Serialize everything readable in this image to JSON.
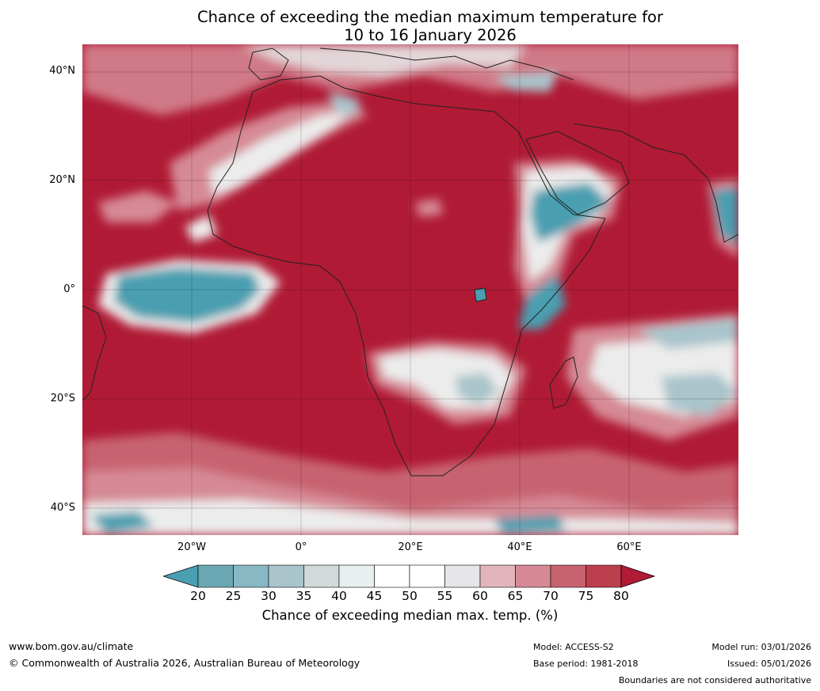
{
  "title_line1": "Chance of exceeding the median maximum temperature for",
  "title_line2": "10 to 16 January 2026",
  "lat_labels": [
    "40°N",
    "20°N",
    "0°",
    "20°S",
    "40°S"
  ],
  "lon_labels": [
    "20°W",
    "0°",
    "20°E",
    "40°E",
    "60°E"
  ],
  "colorbar": {
    "ticks": [
      "20",
      "25",
      "30",
      "35",
      "40",
      "45",
      "50",
      "55",
      "60",
      "65",
      "70",
      "75",
      "80"
    ],
    "colors": [
      "#4a9fb0",
      "#6aa7b3",
      "#88b8c3",
      "#a9c4cb",
      "#d3d8db",
      "#e9eef1",
      "#ffffff",
      "#ffffff",
      "#e6e6e8",
      "#e2b5bc",
      "#d68a95",
      "#c7636f",
      "#bc3f4d",
      "#b01a35"
    ],
    "label": "Chance of exceeding median max. temp. (%)"
  },
  "palette": {
    "ocean_high": "#b01a35",
    "warm_light": "#d68a95",
    "warm_mid": "#c7636f",
    "neutral": "#ececec",
    "cool_light": "#a9c4cb",
    "cool": "#4a9fb0"
  },
  "footer": {
    "url": "www.bom.gov.au/climate",
    "copyright": "© Commonwealth of Australia 2026, Australian Bureau of Meteorology",
    "model": "Model: ACCESS-S2",
    "base_period": "Base period: 1981-2018",
    "model_run": "Model run: 03/01/2026",
    "issued": "Issued: 05/01/2026",
    "disclaimer": "Boundaries are not considered authoritative"
  }
}
